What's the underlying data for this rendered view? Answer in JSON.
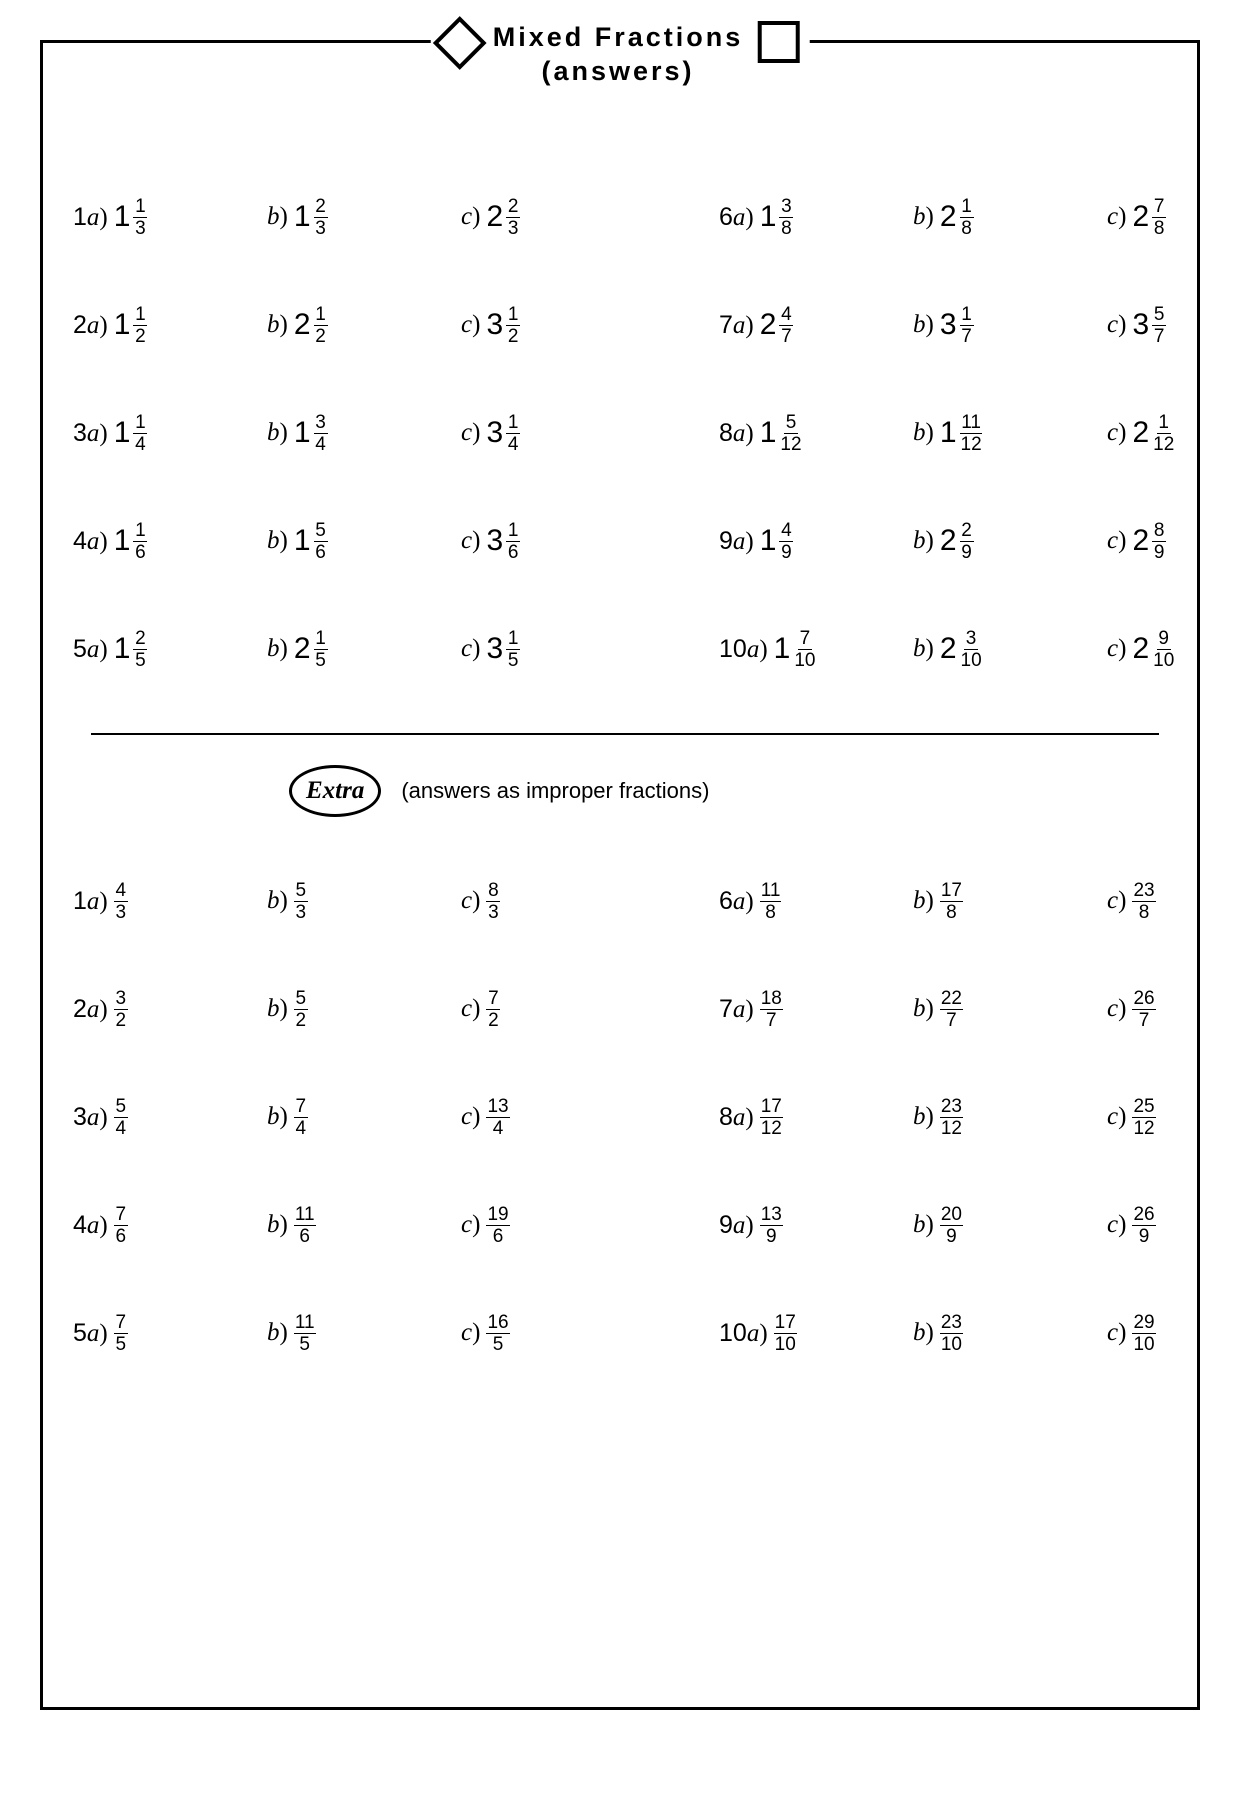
{
  "title": {
    "line1": "Mixed Fractions",
    "line2": "(answers)"
  },
  "extra": {
    "badge": "Extra",
    "subtitle": "(answers as improper fractions)"
  },
  "labels": {
    "a": "a)",
    "b": "b)",
    "c": "c)"
  },
  "mixed": {
    "left": [
      {
        "q": "1",
        "a": {
          "w": "1",
          "n": "1",
          "d": "3"
        },
        "b": {
          "w": "1",
          "n": "2",
          "d": "3"
        },
        "c": {
          "w": "2",
          "n": "2",
          "d": "3"
        }
      },
      {
        "q": "2",
        "a": {
          "w": "1",
          "n": "1",
          "d": "2"
        },
        "b": {
          "w": "2",
          "n": "1",
          "d": "2"
        },
        "c": {
          "w": "3",
          "n": "1",
          "d": "2"
        }
      },
      {
        "q": "3",
        "a": {
          "w": "1",
          "n": "1",
          "d": "4"
        },
        "b": {
          "w": "1",
          "n": "3",
          "d": "4"
        },
        "c": {
          "w": "3",
          "n": "1",
          "d": "4"
        }
      },
      {
        "q": "4",
        "a": {
          "w": "1",
          "n": "1",
          "d": "6"
        },
        "b": {
          "w": "1",
          "n": "5",
          "d": "6"
        },
        "c": {
          "w": "3",
          "n": "1",
          "d": "6"
        }
      },
      {
        "q": "5",
        "a": {
          "w": "1",
          "n": "2",
          "d": "5"
        },
        "b": {
          "w": "2",
          "n": "1",
          "d": "5"
        },
        "c": {
          "w": "3",
          "n": "1",
          "d": "5"
        }
      }
    ],
    "right": [
      {
        "q": "6",
        "a": {
          "w": "1",
          "n": "3",
          "d": "8"
        },
        "b": {
          "w": "2",
          "n": "1",
          "d": "8"
        },
        "c": {
          "w": "2",
          "n": "7",
          "d": "8"
        }
      },
      {
        "q": "7",
        "a": {
          "w": "2",
          "n": "4",
          "d": "7"
        },
        "b": {
          "w": "3",
          "n": "1",
          "d": "7"
        },
        "c": {
          "w": "3",
          "n": "5",
          "d": "7"
        }
      },
      {
        "q": "8",
        "a": {
          "w": "1",
          "n": "5",
          "d": "12"
        },
        "b": {
          "w": "1",
          "n": "11",
          "d": "12"
        },
        "c": {
          "w": "2",
          "n": "1",
          "d": "12"
        }
      },
      {
        "q": "9",
        "a": {
          "w": "1",
          "n": "4",
          "d": "9"
        },
        "b": {
          "w": "2",
          "n": "2",
          "d": "9"
        },
        "c": {
          "w": "2",
          "n": "8",
          "d": "9"
        }
      },
      {
        "q": "10",
        "a": {
          "w": "1",
          "n": "7",
          "d": "10"
        },
        "b": {
          "w": "2",
          "n": "3",
          "d": "10"
        },
        "c": {
          "w": "2",
          "n": "9",
          "d": "10"
        }
      }
    ]
  },
  "improper": {
    "left": [
      {
        "q": "1",
        "a": {
          "n": "4",
          "d": "3"
        },
        "b": {
          "n": "5",
          "d": "3"
        },
        "c": {
          "n": "8",
          "d": "3"
        }
      },
      {
        "q": "2",
        "a": {
          "n": "3",
          "d": "2"
        },
        "b": {
          "n": "5",
          "d": "2"
        },
        "c": {
          "n": "7",
          "d": "2"
        }
      },
      {
        "q": "3",
        "a": {
          "n": "5",
          "d": "4"
        },
        "b": {
          "n": "7",
          "d": "4"
        },
        "c": {
          "n": "13",
          "d": "4"
        }
      },
      {
        "q": "4",
        "a": {
          "n": "7",
          "d": "6"
        },
        "b": {
          "n": "11",
          "d": "6"
        },
        "c": {
          "n": "19",
          "d": "6"
        }
      },
      {
        "q": "5",
        "a": {
          "n": "7",
          "d": "5"
        },
        "b": {
          "n": "11",
          "d": "5"
        },
        "c": {
          "n": "16",
          "d": "5"
        }
      }
    ],
    "right": [
      {
        "q": "6",
        "a": {
          "n": "11",
          "d": "8"
        },
        "b": {
          "n": "17",
          "d": "8"
        },
        "c": {
          "n": "23",
          "d": "8"
        }
      },
      {
        "q": "7",
        "a": {
          "n": "18",
          "d": "7"
        },
        "b": {
          "n": "22",
          "d": "7"
        },
        "c": {
          "n": "26",
          "d": "7"
        }
      },
      {
        "q": "8",
        "a": {
          "n": "17",
          "d": "12"
        },
        "b": {
          "n": "23",
          "d": "12"
        },
        "c": {
          "n": "25",
          "d": "12"
        }
      },
      {
        "q": "9",
        "a": {
          "n": "13",
          "d": "9"
        },
        "b": {
          "n": "20",
          "d": "9"
        },
        "c": {
          "n": "26",
          "d": "9"
        }
      },
      {
        "q": "10",
        "a": {
          "n": "17",
          "d": "10"
        },
        "b": {
          "n": "23",
          "d": "10"
        },
        "c": {
          "n": "29",
          "d": "10"
        }
      }
    ]
  }
}
